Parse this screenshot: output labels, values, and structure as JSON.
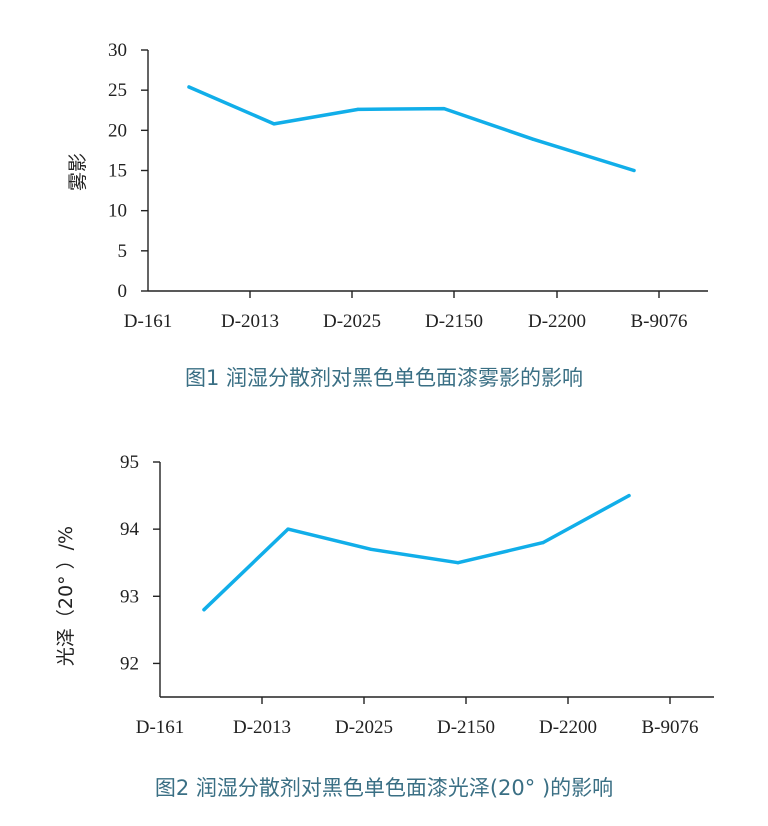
{
  "chart_data": [
    {
      "type": "line",
      "title": "",
      "caption": "图1   润湿分散剂对黑色单色面漆雾影的影响",
      "xlabel": "",
      "ylabel": "雾影",
      "categories": [
        "D-161",
        "D-2013",
        "D-2025",
        "D-2150",
        "D-2200",
        "B-9076"
      ],
      "series": [
        {
          "name": "雾影",
          "values": [
            25.4,
            20.8,
            22.6,
            22.7,
            18.9,
            15.0
          ]
        }
      ],
      "ylim": [
        0,
        30
      ],
      "yticks": [
        "0",
        "5",
        "10",
        "15",
        "20",
        "25",
        "30"
      ],
      "color": "#11aee9",
      "grid": false
    },
    {
      "type": "line",
      "title": "",
      "caption": "图2   润湿分散剂对黑色单色面漆光泽(20°  )的影响",
      "xlabel": "",
      "ylabel": "光泽（20°  ）/%",
      "categories": [
        "D-161",
        "D-2013",
        "D-2025",
        "D-2150",
        "D-2200",
        "B-9076"
      ],
      "series": [
        {
          "name": "光泽（20°）",
          "values": [
            92.8,
            94.0,
            93.7,
            93.5,
            93.8,
            94.5
          ]
        }
      ],
      "ylim": [
        91.5,
        95
      ],
      "yticks": [
        "92",
        "93",
        "94",
        "95"
      ],
      "color": "#11aee9",
      "grid": false
    }
  ]
}
